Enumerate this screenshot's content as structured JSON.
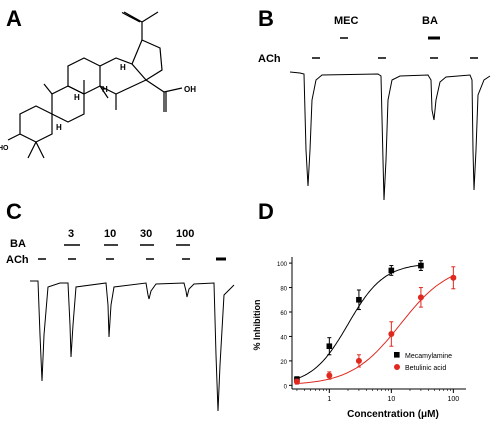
{
  "panels": {
    "a": {
      "label": "A",
      "atom_labels": {
        "acid": "OH",
        "hydroxyl": "HO",
        "h1": "H",
        "h2": "H",
        "h3": "H",
        "h4": "H"
      }
    },
    "b": {
      "label": "B",
      "drug1": "MEC",
      "drug2": "BA",
      "agonist": "ACh"
    },
    "c": {
      "label": "C",
      "drug": "BA",
      "agonist": "ACh",
      "concentrations": [
        "3",
        "10",
        "30",
        "100"
      ]
    },
    "d": {
      "label": "D"
    }
  },
  "chart_data": {
    "type": "scatter",
    "xlabel": "Concentration (μM)",
    "ylabel": "% Inhibition",
    "xscale": "log",
    "xlim": [
      0.3,
      100
    ],
    "ylim": [
      0,
      100
    ],
    "xticks": [
      "1",
      "10",
      "100"
    ],
    "yticks": [
      "0",
      "20",
      "40",
      "60",
      "80",
      "100"
    ],
    "legend_position": "bottom-right",
    "series": [
      {
        "name": "Mecamylamine",
        "color": "#000000",
        "marker": "square",
        "x": [
          0.3,
          1,
          3,
          10,
          30
        ],
        "y": [
          5,
          32,
          70,
          94,
          98
        ],
        "err": [
          2,
          7,
          8,
          4,
          4
        ]
      },
      {
        "name": "Betulinic acid",
        "color": "#e0281e",
        "marker": "circle",
        "x": [
          0.3,
          1,
          3,
          10,
          30,
          100
        ],
        "y": [
          3,
          8,
          20,
          42,
          72,
          88
        ],
        "err": [
          2,
          3,
          5,
          10,
          8,
          9
        ]
      }
    ]
  }
}
